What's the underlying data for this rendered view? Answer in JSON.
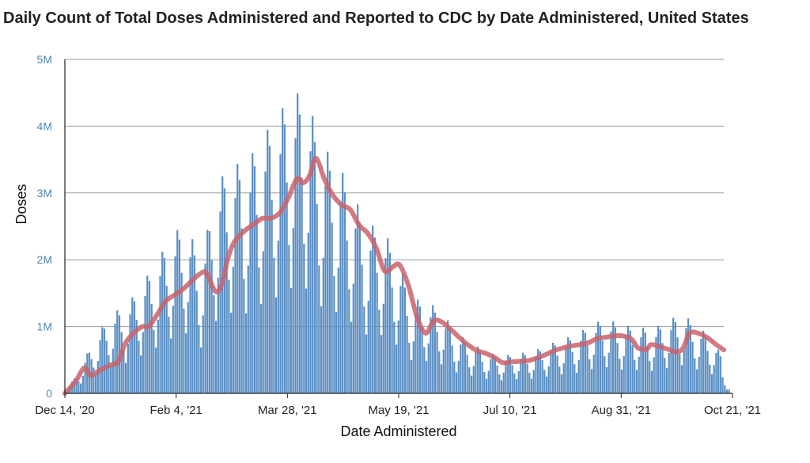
{
  "chart_data": {
    "type": "bar",
    "title": "Daily Count of Total Doses Administered and Reported to CDC by Date Administered, United States",
    "xlabel": "Date Administered",
    "ylabel": "Doses",
    "x_start": "2020-12-14",
    "x_end": "2021-10-21",
    "x_tick_labels": [
      "Dec 14, '20",
      "Feb 4, '21",
      "Mar 28, '21",
      "May 19, '21",
      "Jul 10, '21",
      "Aug 31, '21",
      "Oct 21, '21"
    ],
    "y_tick_labels": [
      "0",
      "1M",
      "2M",
      "3M",
      "4M",
      "5M"
    ],
    "y_tick_values": [
      0,
      1000000,
      2000000,
      3000000,
      4000000,
      5000000
    ],
    "ylim": [
      0,
      5000000
    ],
    "grid": true,
    "series": [
      {
        "kind": "bar",
        "color": "#5b8fc4",
        "weekly_peaks": [
          [
            "2020-12-14",
            0
          ],
          [
            "2020-12-21",
            420000
          ],
          [
            "2020-12-28",
            830000
          ],
          [
            "2021-01-04",
            1200000
          ],
          [
            "2021-01-11",
            1300000
          ],
          [
            "2021-01-18",
            1620000
          ],
          [
            "2021-01-25",
            1950000
          ],
          [
            "2021-02-01",
            2350000
          ],
          [
            "2021-02-08",
            2570000
          ],
          [
            "2021-02-15",
            1960000
          ],
          [
            "2021-02-22",
            3100000
          ],
          [
            "2021-03-01",
            3450000
          ],
          [
            "2021-03-08",
            3420000
          ],
          [
            "2021-03-15",
            3830000
          ],
          [
            "2021-03-22",
            4100000
          ],
          [
            "2021-03-29",
            4500000
          ],
          [
            "2021-04-05",
            4480000
          ],
          [
            "2021-04-12",
            3720000
          ],
          [
            "2021-04-19",
            3480000
          ],
          [
            "2021-04-26",
            3060000
          ],
          [
            "2021-05-03",
            2520000
          ],
          [
            "2021-05-10",
            2500000
          ],
          [
            "2021-05-17",
            2080000
          ],
          [
            "2021-05-24",
            1420000
          ],
          [
            "2021-05-31",
            1380000
          ],
          [
            "2021-06-07",
            1240000
          ],
          [
            "2021-06-14",
            900000
          ],
          [
            "2021-06-21",
            760000
          ],
          [
            "2021-06-28",
            620000
          ],
          [
            "2021-07-05",
            560000
          ],
          [
            "2021-07-12",
            600000
          ],
          [
            "2021-07-19",
            620000
          ],
          [
            "2021-07-26",
            720000
          ],
          [
            "2021-08-02",
            810000
          ],
          [
            "2021-08-09",
            880000
          ],
          [
            "2021-08-16",
            1040000
          ],
          [
            "2021-08-23",
            1120000
          ],
          [
            "2021-08-30",
            1020000
          ],
          [
            "2021-09-06",
            1000000
          ],
          [
            "2021-09-13",
            960000
          ],
          [
            "2021-09-20",
            1080000
          ],
          [
            "2021-09-27",
            1200000
          ],
          [
            "2021-10-04",
            1020000
          ],
          [
            "2021-10-11",
            830000
          ],
          [
            "2021-10-18",
            420000
          ]
        ]
      },
      {
        "kind": "line",
        "color": "#c9636b",
        "points": [
          [
            "2020-12-14",
            0
          ],
          [
            "2020-12-19",
            180000
          ],
          [
            "2020-12-23",
            380000
          ],
          [
            "2020-12-26",
            270000
          ],
          [
            "2020-12-30",
            340000
          ],
          [
            "2021-01-04",
            420000
          ],
          [
            "2021-01-08",
            480000
          ],
          [
            "2021-01-11",
            740000
          ],
          [
            "2021-01-15",
            900000
          ],
          [
            "2021-01-19",
            1000000
          ],
          [
            "2021-01-22",
            1000000
          ],
          [
            "2021-01-26",
            1180000
          ],
          [
            "2021-01-30",
            1380000
          ],
          [
            "2021-02-03",
            1470000
          ],
          [
            "2021-02-07",
            1560000
          ],
          [
            "2021-02-11",
            1680000
          ],
          [
            "2021-02-15",
            1790000
          ],
          [
            "2021-02-18",
            1800000
          ],
          [
            "2021-02-22",
            1530000
          ],
          [
            "2021-02-25",
            1620000
          ],
          [
            "2021-02-28",
            2030000
          ],
          [
            "2021-03-03",
            2270000
          ],
          [
            "2021-03-08",
            2440000
          ],
          [
            "2021-03-12",
            2530000
          ],
          [
            "2021-03-16",
            2620000
          ],
          [
            "2021-03-20",
            2620000
          ],
          [
            "2021-03-24",
            2700000
          ],
          [
            "2021-03-28",
            2920000
          ],
          [
            "2021-04-01",
            3210000
          ],
          [
            "2021-04-04",
            3150000
          ],
          [
            "2021-04-07",
            3260000
          ],
          [
            "2021-04-10",
            3520000
          ],
          [
            "2021-04-14",
            3200000
          ],
          [
            "2021-04-18",
            2960000
          ],
          [
            "2021-04-22",
            2820000
          ],
          [
            "2021-04-26",
            2750000
          ],
          [
            "2021-04-30",
            2520000
          ],
          [
            "2021-05-04",
            2400000
          ],
          [
            "2021-05-08",
            2180000
          ],
          [
            "2021-05-12",
            1830000
          ],
          [
            "2021-05-16",
            1900000
          ],
          [
            "2021-05-19",
            1920000
          ],
          [
            "2021-05-23",
            1620000
          ],
          [
            "2021-05-27",
            1150000
          ],
          [
            "2021-05-31",
            900000
          ],
          [
            "2021-06-04",
            1090000
          ],
          [
            "2021-06-08",
            1060000
          ],
          [
            "2021-06-12",
            950000
          ],
          [
            "2021-06-16",
            830000
          ],
          [
            "2021-06-20",
            720000
          ],
          [
            "2021-06-24",
            640000
          ],
          [
            "2021-06-28",
            600000
          ],
          [
            "2021-07-02",
            540000
          ],
          [
            "2021-07-06",
            460000
          ],
          [
            "2021-07-10",
            470000
          ],
          [
            "2021-07-14",
            480000
          ],
          [
            "2021-07-18",
            490000
          ],
          [
            "2021-07-22",
            530000
          ],
          [
            "2021-07-26",
            580000
          ],
          [
            "2021-07-30",
            640000
          ],
          [
            "2021-08-03",
            680000
          ],
          [
            "2021-08-07",
            710000
          ],
          [
            "2021-08-11",
            730000
          ],
          [
            "2021-08-15",
            760000
          ],
          [
            "2021-08-19",
            820000
          ],
          [
            "2021-08-23",
            840000
          ],
          [
            "2021-08-27",
            860000
          ],
          [
            "2021-08-31",
            860000
          ],
          [
            "2021-09-04",
            810000
          ],
          [
            "2021-09-07",
            680000
          ],
          [
            "2021-09-11",
            660000
          ],
          [
            "2021-09-13",
            730000
          ],
          [
            "2021-09-17",
            700000
          ],
          [
            "2021-09-21",
            660000
          ],
          [
            "2021-09-25",
            620000
          ],
          [
            "2021-09-28",
            680000
          ],
          [
            "2021-10-01",
            900000
          ],
          [
            "2021-10-05",
            900000
          ],
          [
            "2021-10-09",
            840000
          ],
          [
            "2021-10-13",
            740000
          ],
          [
            "2021-10-17",
            650000
          ]
        ]
      }
    ]
  }
}
